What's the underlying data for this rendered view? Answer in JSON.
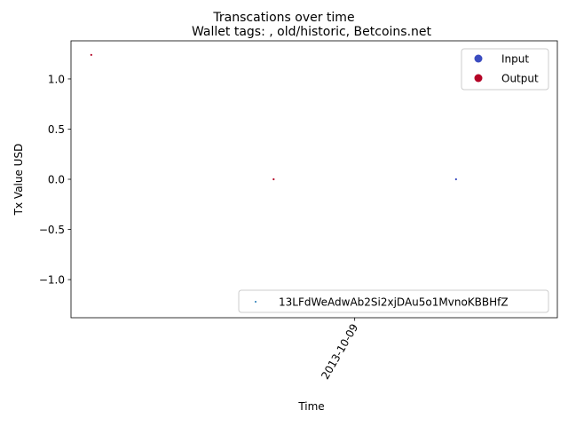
{
  "chart_data": {
    "type": "scatter",
    "suptitle": "Transcations over time",
    "title": "Wallet tags: , old/historic, Betcoins.net",
    "xlabel": "Time",
    "ylabel": "Tx Value USD",
    "xlim": [
      "2013-09-25",
      "2013-10-19"
    ],
    "ylim": [
      -1.38,
      1.38
    ],
    "x_ticks": [
      {
        "value": "2013-10-09",
        "label": "2013-10-09"
      }
    ],
    "y_ticks": [
      {
        "value": -1.0,
        "label": "−1.0"
      },
      {
        "value": -0.5,
        "label": "−0.5"
      },
      {
        "value": 0.0,
        "label": "0.0"
      },
      {
        "value": 0.5,
        "label": "0.5"
      },
      {
        "value": 1.0,
        "label": "1.0"
      }
    ],
    "grid": false,
    "points": [
      {
        "x": "2013-09-26",
        "y": 1.24,
        "kind": "Output"
      },
      {
        "x": "2013-10-05",
        "y": 0.0,
        "kind": "Output"
      },
      {
        "x": "2013-10-14",
        "y": 0.0,
        "kind": "Input"
      }
    ],
    "legend_type": {
      "placement": "upper-right",
      "entries": [
        {
          "label": "Input",
          "color": "#3b4cc0"
        },
        {
          "label": "Output",
          "color": "#b40426"
        }
      ]
    },
    "legend_address": {
      "placement": "lower-right",
      "entries": [
        {
          "label": "13LFdWeAdwAb2Si2xjDAu5o1MvnoKBBHfZ",
          "color": "#1f77b4"
        }
      ]
    }
  }
}
